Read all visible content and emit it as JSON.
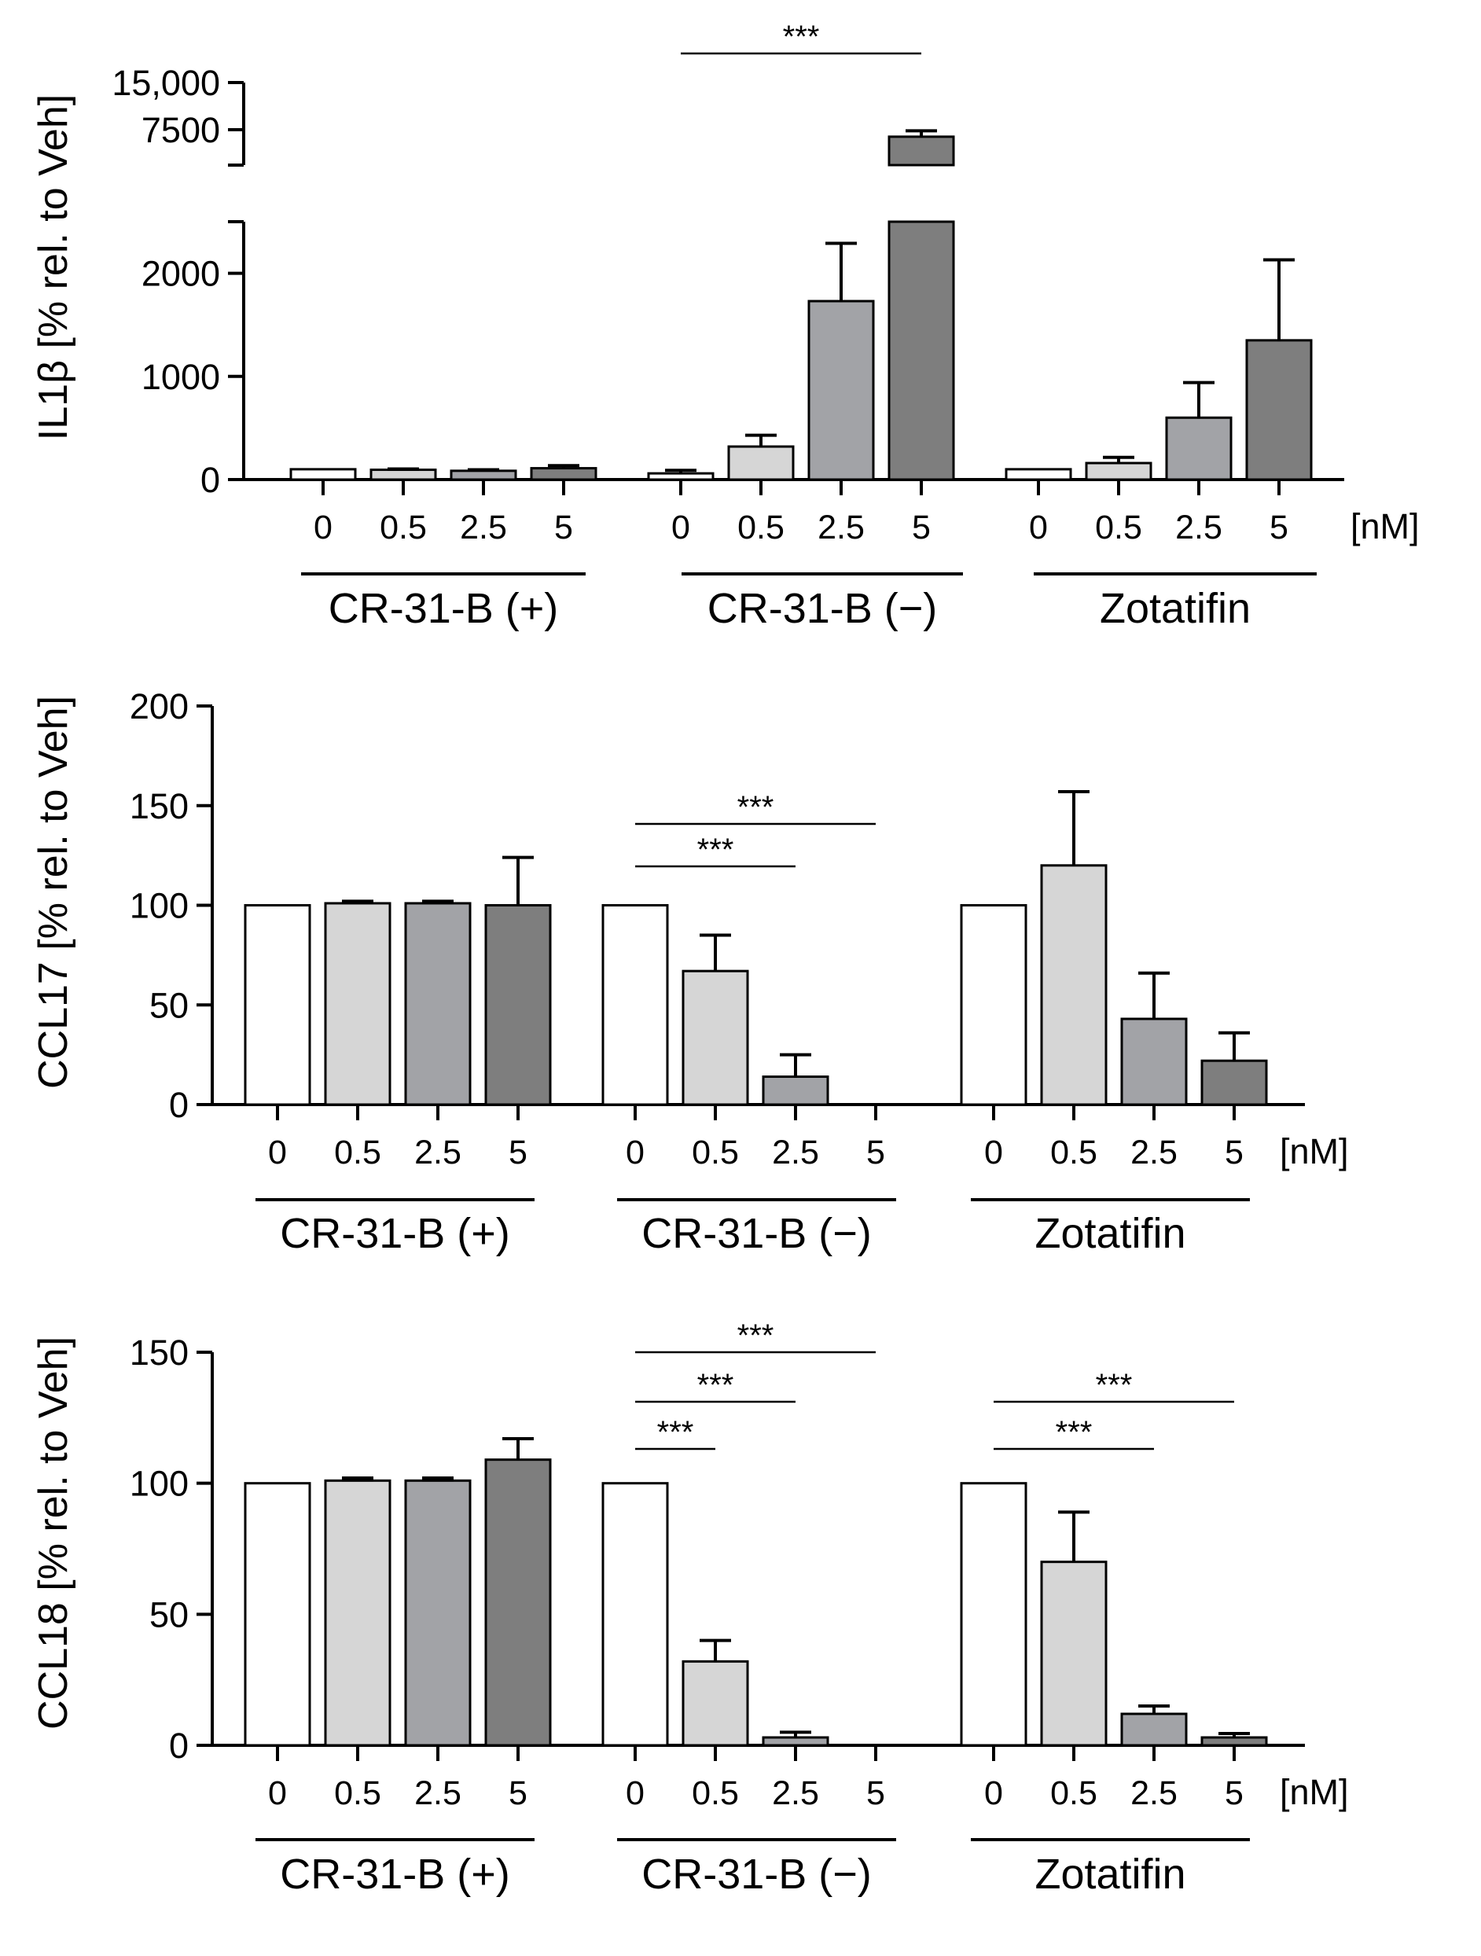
{
  "chart_data": [
    {
      "type": "bar",
      "panel": "IL1β",
      "ylabel": "IL1β [% rel. to Veh]",
      "axis_break": true,
      "lower_range": [
        0,
        2500
      ],
      "upper_range": [
        2500,
        15000
      ],
      "upper_ticks": [
        7500,
        15000
      ],
      "yticks": [
        0,
        1000,
        2000
      ],
      "ytick_labels": [
        "0",
        "1000",
        "2000",
        "7500",
        "15,000"
      ],
      "unit": "[nM]",
      "groups": [
        {
          "name": "CR-31-B (+)",
          "categories": [
            "0",
            "0.5",
            "2.5",
            "5"
          ],
          "values": [
            100,
            95,
            85,
            110
          ],
          "errors": [
            0,
            8,
            10,
            25
          ]
        },
        {
          "name": "CR-31-B (−)",
          "categories": [
            "0",
            "0.5",
            "2.5",
            "5"
          ],
          "values": [
            60,
            320,
            1730,
            6800
          ],
          "errors": [
            30,
            110,
            560,
            900
          ]
        },
        {
          "name": "Zotatifin",
          "categories": [
            "0",
            "0.5",
            "2.5",
            "5"
          ],
          "values": [
            100,
            160,
            600,
            1350
          ],
          "errors": [
            0,
            55,
            340,
            780
          ]
        }
      ],
      "significance": [
        {
          "group": 1,
          "from": 0,
          "to": 3,
          "label": "***"
        }
      ]
    },
    {
      "type": "bar",
      "panel": "CCL17",
      "ylabel": "CCL17 [% rel. to Veh]",
      "ylim": [
        0,
        200
      ],
      "yticks": [
        0,
        50,
        100,
        150,
        200
      ],
      "unit": "[nM]",
      "groups": [
        {
          "name": "CR-31-B (+)",
          "categories": [
            "0",
            "0.5",
            "2.5",
            "5"
          ],
          "values": [
            100,
            101,
            101,
            100
          ],
          "errors": [
            0,
            1,
            1,
            24
          ]
        },
        {
          "name": "CR-31-B (−)",
          "categories": [
            "0",
            "0.5",
            "2.5",
            "5"
          ],
          "values": [
            100,
            67,
            14,
            0
          ],
          "errors": [
            0,
            18,
            11,
            0
          ]
        },
        {
          "name": "Zotatifin",
          "categories": [
            "0",
            "0.5",
            "2.5",
            "5"
          ],
          "values": [
            100,
            120,
            43,
            22
          ],
          "errors": [
            0,
            37,
            23,
            14
          ]
        }
      ],
      "significance": [
        {
          "group": 1,
          "from": 0,
          "to": 3,
          "label": "***"
        },
        {
          "group": 1,
          "from": 0,
          "to": 2,
          "label": "***"
        }
      ]
    },
    {
      "type": "bar",
      "panel": "CCL18",
      "ylabel": "CCL18 [% rel. to Veh]",
      "ylim": [
        0,
        150
      ],
      "yticks": [
        0,
        50,
        100,
        150
      ],
      "unit": "[nM]",
      "groups": [
        {
          "name": "CR-31-B (+)",
          "categories": [
            "0",
            "0.5",
            "2.5",
            "5"
          ],
          "values": [
            100,
            101,
            101,
            109
          ],
          "errors": [
            0,
            1,
            1,
            8
          ]
        },
        {
          "name": "CR-31-B (−)",
          "categories": [
            "0",
            "0.5",
            "2.5",
            "5"
          ],
          "values": [
            100,
            32,
            3,
            0
          ],
          "errors": [
            0,
            8,
            2,
            0
          ]
        },
        {
          "name": "Zotatifin",
          "categories": [
            "0",
            "0.5",
            "2.5",
            "5"
          ],
          "values": [
            100,
            70,
            12,
            3
          ],
          "errors": [
            0,
            19,
            3,
            1.5
          ]
        }
      ],
      "significance": [
        {
          "group": 1,
          "from": 0,
          "to": 3,
          "label": "***"
        },
        {
          "group": 1,
          "from": 0,
          "to": 2,
          "label": "***"
        },
        {
          "group": 1,
          "from": 0,
          "to": 1,
          "label": "***"
        },
        {
          "group": 2,
          "from": 0,
          "to": 3,
          "label": "***"
        },
        {
          "group": 2,
          "from": 0,
          "to": 2,
          "label": "***"
        }
      ]
    }
  ],
  "colors": {
    "fills": [
      "#ffffff",
      "#d6d6d6",
      "#a2a3a7",
      "#7e7e7e"
    ],
    "stroke": "#000000"
  }
}
